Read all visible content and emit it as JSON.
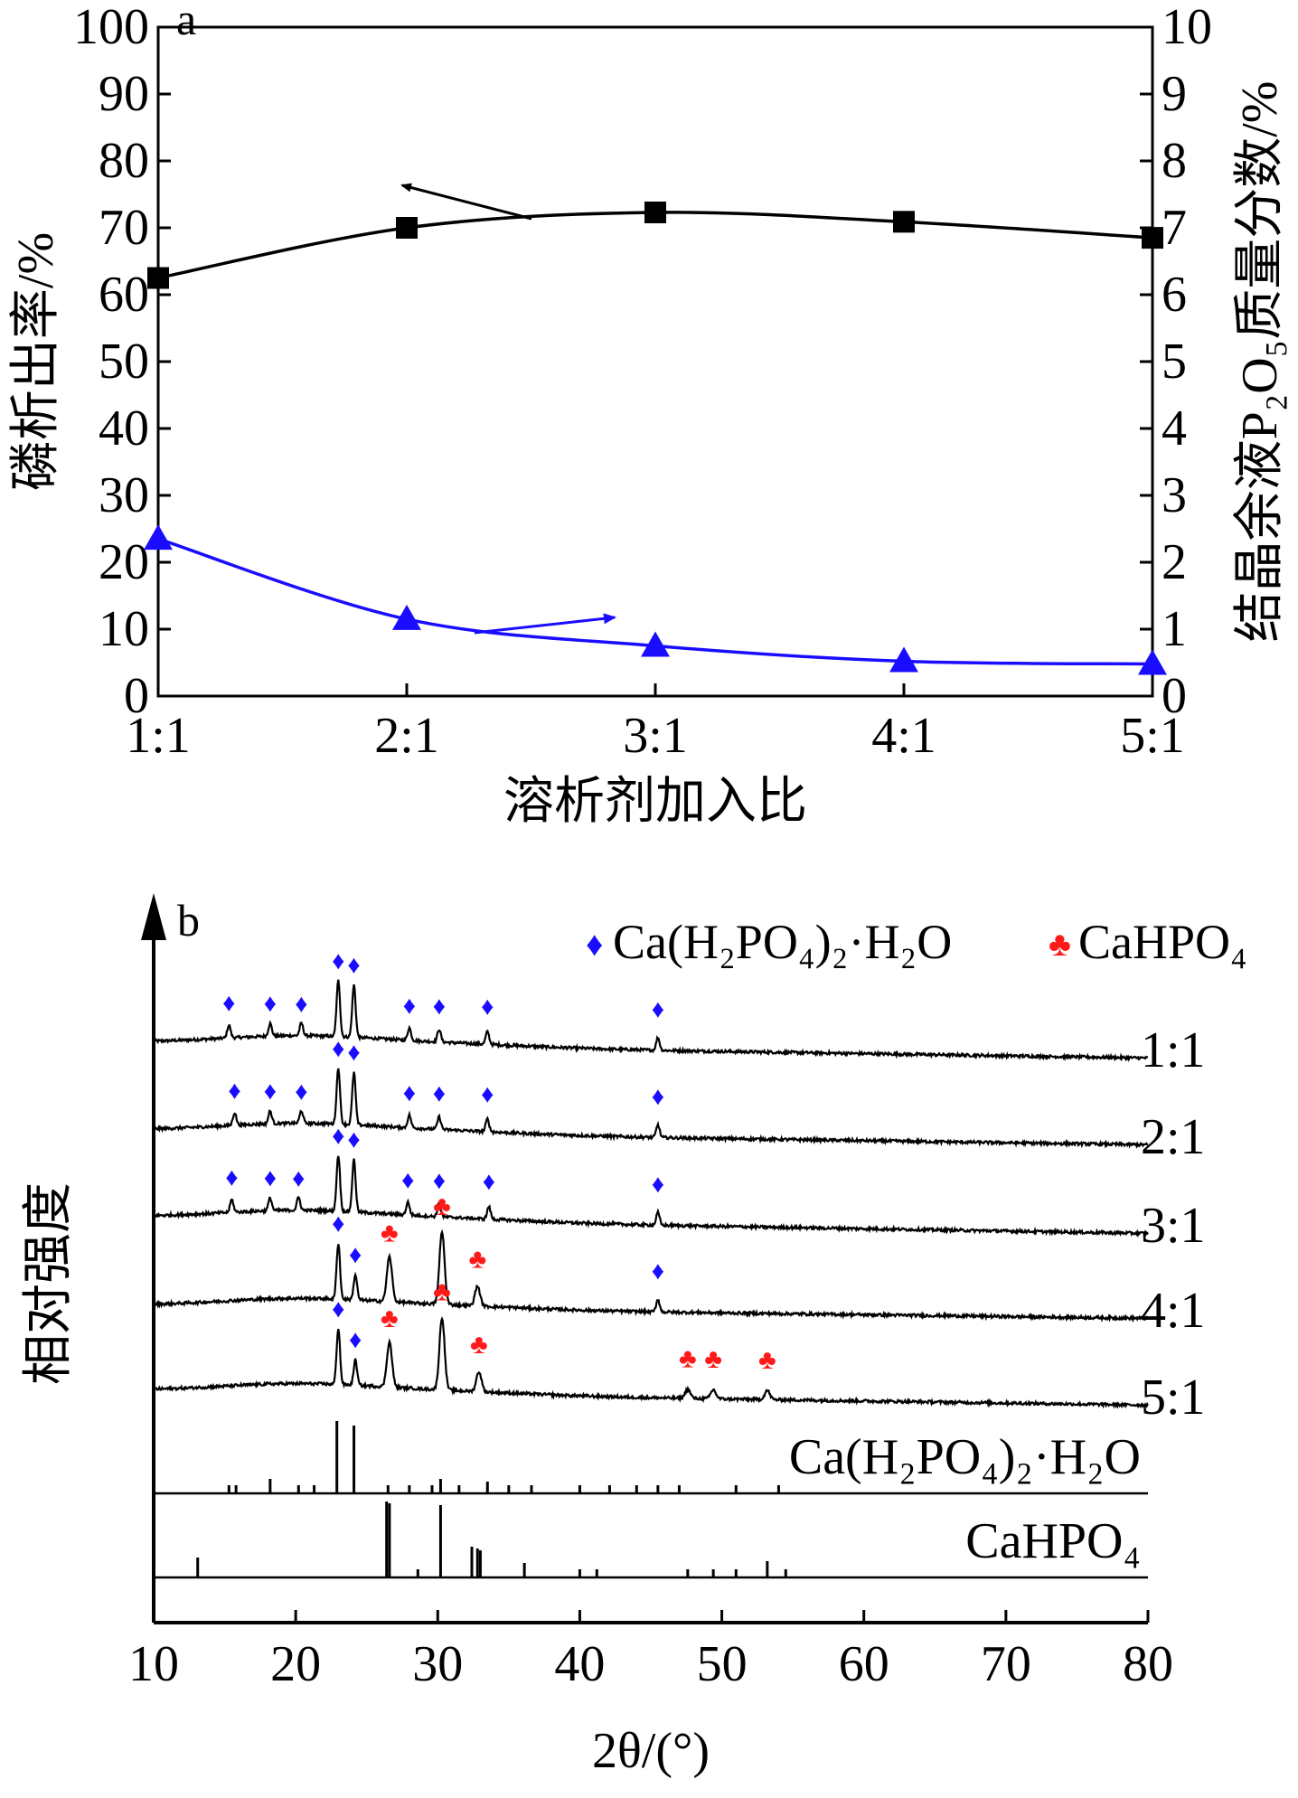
{
  "chart_data": [
    {
      "type": "line",
      "panel": "a",
      "xlabel": "溶析剂加入比",
      "categories": [
        "1:1",
        "2:1",
        "3:1",
        "4:1",
        "5:1"
      ],
      "ylabel": "磷析出率/%",
      "ylim": [
        0,
        100
      ],
      "y_ticks": [
        "0",
        "10",
        "20",
        "30",
        "40",
        "50",
        "60",
        "70",
        "80",
        "90",
        "100"
      ],
      "y2label": "结晶余液P₂O₅质量分数/%",
      "y2lim": [
        0,
        10
      ],
      "y2_ticks": [
        "0",
        "1",
        "2",
        "3",
        "4",
        "5",
        "6",
        "7",
        "8",
        "9",
        "10"
      ],
      "grid": false,
      "series": [
        {
          "axis": "left",
          "marker": "square",
          "color": "#000000",
          "values": [
            62.5,
            70.0,
            72.3,
            70.9,
            68.5
          ],
          "arrow_direction": "left"
        },
        {
          "axis": "right",
          "marker": "triangle",
          "color": "#1a0dff",
          "values": [
            2.35,
            1.15,
            0.75,
            0.52,
            0.48
          ],
          "arrow_direction": "right"
        }
      ]
    },
    {
      "type": "line",
      "panel": "b",
      "xlabel": "2θ/(°)",
      "ylabel": "相对强度",
      "xlim": [
        10,
        80
      ],
      "x_ticks": [
        "10",
        "20",
        "30",
        "40",
        "50",
        "60",
        "70",
        "80"
      ],
      "grid": false,
      "legend": [
        {
          "symbol": "♦",
          "label": "Ca(H₂PO₄)₂·H₂O",
          "color": "#1a0dff"
        },
        {
          "symbol": "♣",
          "label": "CaHPO₄",
          "color": "#ff1a1a"
        }
      ],
      "series": [
        {
          "name": "1:1",
          "mcp_peaks": [
            15.3,
            18.2,
            20.4,
            23.0,
            24.1,
            28.0,
            30.1,
            33.5,
            45.5
          ],
          "dcpa_peaks": []
        },
        {
          "name": "2:1",
          "mcp_peaks": [
            15.7,
            18.2,
            20.4,
            23.0,
            24.1,
            28.0,
            30.1,
            33.5,
            45.5
          ],
          "dcpa_peaks": []
        },
        {
          "name": "3:1",
          "mcp_peaks": [
            15.5,
            18.2,
            20.2,
            23.0,
            24.1,
            27.9,
            30.1,
            33.6,
            45.5
          ],
          "dcpa_peaks": []
        },
        {
          "name": "4:1",
          "mcp_peaks": [
            23.0,
            24.2,
            45.5
          ],
          "dcpa_peaks": [
            26.6,
            30.3,
            32.8
          ]
        },
        {
          "name": "5:1",
          "mcp_peaks": [
            23.0,
            24.2
          ],
          "dcpa_peaks": [
            26.6,
            30.3,
            32.9,
            47.6,
            49.4,
            53.2
          ]
        },
        {
          "name": "Ca(H₂PO₄)₂·H₂O",
          "reference": true,
          "peaks": [
            15.3,
            15.8,
            18.2,
            20.2,
            21.3,
            22.9,
            24.1,
            26.5,
            28.0,
            29.6,
            30.2,
            31.5,
            33.5,
            35.0,
            36.6,
            40.0,
            42.1,
            44.0,
            45.5,
            47.0,
            51.0,
            54.0
          ]
        },
        {
          "name": "CaHPO₄",
          "reference": true,
          "peaks": [
            13.1,
            26.4,
            26.6,
            28.6,
            30.2,
            32.4,
            32.8,
            33.0,
            36.1,
            40.0,
            41.2,
            47.6,
            49.4,
            51.0,
            53.2,
            54.5
          ]
        }
      ]
    }
  ]
}
